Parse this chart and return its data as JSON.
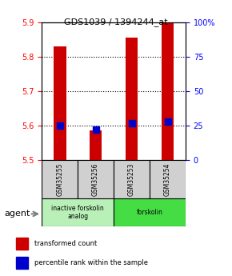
{
  "title": "GDS1039 / 1394244_at",
  "samples": [
    "GSM35255",
    "GSM35256",
    "GSM35253",
    "GSM35254"
  ],
  "red_values": [
    5.83,
    5.585,
    5.855,
    5.9
  ],
  "blue_values": [
    5.601,
    5.588,
    5.607,
    5.611
  ],
  "ylim": [
    5.5,
    5.9
  ],
  "y_ticks_left": [
    5.5,
    5.6,
    5.7,
    5.8,
    5.9
  ],
  "y_ticks_right": [
    0,
    25,
    50,
    75,
    100
  ],
  "ytick_right_labels": [
    "0",
    "25",
    "50",
    "75",
    "100%"
  ],
  "groups": [
    {
      "label": "inactive forskolin\nanalog",
      "color": "#b8f0b8",
      "span": [
        0,
        2
      ]
    },
    {
      "label": "forskolin",
      "color": "#44dd44",
      "span": [
        2,
        4
      ]
    }
  ],
  "bar_color": "#cc0000",
  "dot_color": "#0000cc",
  "bar_width": 0.35,
  "dot_size": 40,
  "background_color": "#ffffff",
  "plot_bg": "#ffffff",
  "grid_color": "#000000",
  "sample_box_color": "#d0d0d0",
  "legend_red_label": "transformed count",
  "legend_blue_label": "percentile rank within the sample",
  "agent_label": "agent",
  "base_value": 5.5
}
